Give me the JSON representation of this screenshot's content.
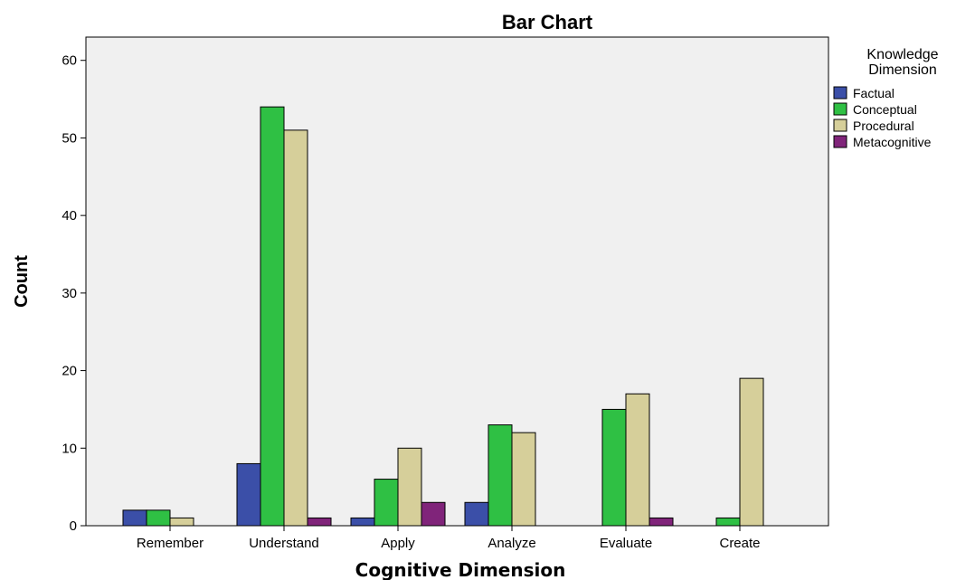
{
  "chart_data": {
    "type": "bar",
    "title": "Bar Chart",
    "xlabel": "Cognitive Dimension",
    "ylabel": "Count",
    "categories": [
      "Remember",
      "Understand",
      "Apply",
      "Analyze",
      "Evaluate",
      "Create"
    ],
    "series": [
      {
        "name": "Factual",
        "color": "#3b4fa8",
        "values": [
          2,
          8,
          1,
          3,
          0,
          0
        ]
      },
      {
        "name": "Conceptual",
        "color": "#2fc044",
        "values": [
          2,
          54,
          6,
          13,
          15,
          1
        ]
      },
      {
        "name": "Procedural",
        "color": "#d6cf9a",
        "values": [
          1,
          51,
          10,
          12,
          17,
          19
        ]
      },
      {
        "name": "Metacognitive",
        "color": "#80247a",
        "values": [
          0,
          1,
          3,
          0,
          1,
          0
        ]
      }
    ],
    "ylim": [
      0,
      63
    ],
    "yticks": [
      0,
      10,
      20,
      30,
      40,
      50,
      60
    ],
    "legend": {
      "title_lines": [
        "Knowledge",
        "Dimension"
      ],
      "placement": "right"
    },
    "plot_background": "#f0f0f0",
    "grid": false
  }
}
